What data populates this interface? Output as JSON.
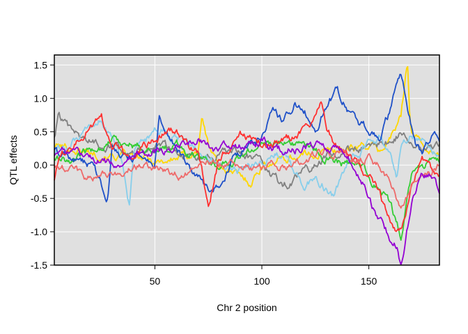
{
  "chart_data": {
    "type": "line",
    "xlabel": "Chr 2 position",
    "ylabel": "QTL effects",
    "xlim": [
      3,
      183
    ],
    "ylim": [
      -1.5,
      1.65
    ],
    "xticks": [
      50,
      100,
      150
    ],
    "yticks": [
      -1.5,
      -1.0,
      -0.5,
      0.0,
      0.5,
      1.0,
      1.5
    ],
    "ytick_labels": [
      "-1.5",
      "-1.0",
      "-0.5",
      "0.0",
      "0.5",
      "1.0",
      "1.5"
    ],
    "background": "#e0e0e0",
    "grid": true,
    "legend": "none",
    "series": [
      {
        "color": "#ffd700",
        "x": [
          3,
          10,
          20,
          30,
          40,
          50,
          60,
          70,
          72,
          75,
          80,
          90,
          95,
          100,
          110,
          120,
          130,
          140,
          150,
          155,
          160,
          165,
          168,
          169,
          170,
          175,
          183
        ],
        "y": [
          0.3,
          0.25,
          0.2,
          0.15,
          0.1,
          0.05,
          0.1,
          0.2,
          0.7,
          0.3,
          0.0,
          -0.2,
          -0.25,
          0.0,
          0.1,
          0.15,
          0.2,
          0.25,
          0.3,
          0.2,
          0.4,
          0.7,
          1.58,
          0.9,
          0.5,
          0.3,
          0.1
        ]
      },
      {
        "color": "#808080",
        "x": [
          3,
          5,
          10,
          20,
          30,
          40,
          50,
          60,
          70,
          80,
          90,
          95,
          100,
          105,
          110,
          115,
          120,
          130,
          140,
          150,
          160,
          165,
          170,
          175,
          183
        ],
        "y": [
          0.4,
          0.75,
          0.5,
          0.35,
          0.3,
          0.25,
          0.3,
          0.2,
          0.1,
          0.15,
          0.2,
          0.1,
          0.0,
          -0.2,
          -0.3,
          -0.25,
          -0.1,
          0.1,
          0.2,
          0.3,
          0.35,
          0.5,
          0.3,
          0.2,
          0.25
        ]
      },
      {
        "color": "#87ceeb",
        "x": [
          3,
          10,
          20,
          25,
          30,
          35,
          38,
          40,
          50,
          60,
          70,
          80,
          90,
          100,
          110,
          115,
          120,
          125,
          130,
          134,
          140,
          150,
          155,
          160,
          163,
          165,
          170,
          175,
          183
        ],
        "y": [
          0.2,
          0.3,
          0.5,
          0.7,
          0.4,
          0.0,
          -0.57,
          0.1,
          0.5,
          0.4,
          0.2,
          0.0,
          -0.1,
          0.1,
          0.2,
          -0.1,
          -0.3,
          -0.2,
          -0.35,
          -0.5,
          0.0,
          0.3,
          0.4,
          0.2,
          -0.2,
          0.3,
          0.5,
          0.4,
          0.2
        ]
      },
      {
        "color": "#32cd32",
        "x": [
          3,
          10,
          20,
          30,
          40,
          50,
          60,
          70,
          80,
          90,
          100,
          110,
          120,
          130,
          140,
          150,
          155,
          160,
          163,
          165,
          168,
          170,
          175,
          183
        ],
        "y": [
          0.1,
          0.05,
          0.2,
          0.4,
          0.3,
          0.2,
          0.3,
          0.1,
          0.0,
          0.1,
          0.3,
          0.4,
          0.3,
          0.1,
          0.0,
          -0.1,
          -0.4,
          -0.6,
          -0.9,
          -1.1,
          -0.5,
          -0.2,
          0.0,
          0.0
        ]
      },
      {
        "color": "#1e50c8",
        "x": [
          3,
          10,
          20,
          25,
          28,
          30,
          40,
          50,
          52,
          55,
          60,
          65,
          70,
          75,
          80,
          85,
          90,
          100,
          105,
          110,
          115,
          120,
          125,
          130,
          135,
          140,
          145,
          150,
          155,
          160,
          163,
          165,
          167,
          170,
          172,
          175,
          180,
          183
        ],
        "y": [
          0.2,
          0.1,
          0.0,
          -0.3,
          -0.47,
          0.2,
          0.1,
          0.0,
          0.75,
          0.5,
          0.3,
          0.0,
          -0.2,
          -0.4,
          -0.3,
          0.0,
          0.2,
          0.4,
          0.8,
          0.7,
          0.9,
          0.8,
          0.6,
          0.9,
          1.1,
          0.85,
          0.6,
          0.5,
          0.4,
          0.8,
          1.2,
          1.3,
          1.0,
          0.6,
          0.3,
          0.2,
          0.45,
          0.4
        ]
      },
      {
        "color": "#ff3030",
        "x": [
          3,
          5,
          10,
          20,
          25,
          28,
          30,
          40,
          50,
          60,
          70,
          72,
          75,
          80,
          90,
          100,
          110,
          120,
          125,
          128,
          130,
          135,
          140,
          145,
          150,
          155,
          158,
          160,
          163,
          165,
          168,
          170,
          175,
          180,
          183
        ],
        "y": [
          -0.2,
          0.1,
          0.3,
          0.6,
          0.7,
          0.4,
          0.3,
          0.1,
          0.4,
          0.5,
          0.2,
          -0.1,
          -0.58,
          0.1,
          0.5,
          0.3,
          0.4,
          0.5,
          0.7,
          0.9,
          0.6,
          0.3,
          0.2,
          0.0,
          -0.2,
          -0.4,
          -0.7,
          -0.8,
          -1.05,
          -1.0,
          -0.6,
          -0.2,
          0.1,
          -0.1,
          -0.2
        ]
      },
      {
        "color": "#ee6a6a",
        "x": [
          3,
          10,
          20,
          30,
          40,
          50,
          60,
          65,
          70,
          80,
          90,
          100,
          110,
          120,
          130,
          140,
          150,
          155,
          160,
          165,
          170,
          175,
          183
        ],
        "y": [
          0.0,
          -0.1,
          -0.2,
          -0.15,
          0.0,
          -0.05,
          -0.15,
          -0.1,
          0.0,
          0.05,
          0.0,
          -0.05,
          0.0,
          0.1,
          0.2,
          0.15,
          0.1,
          0.0,
          -0.2,
          -0.6,
          -0.4,
          -0.2,
          -0.05
        ]
      },
      {
        "color": "#9400d3",
        "x": [
          3,
          10,
          20,
          30,
          40,
          50,
          60,
          70,
          80,
          90,
          100,
          110,
          120,
          130,
          140,
          150,
          152,
          155,
          158,
          160,
          163,
          165,
          168,
          170,
          172,
          175,
          180,
          183
        ],
        "y": [
          0.1,
          0.2,
          0.1,
          0.0,
          0.1,
          0.2,
          0.3,
          0.4,
          0.2,
          0.3,
          0.35,
          0.2,
          0.3,
          0.25,
          0.2,
          -0.4,
          -0.6,
          -0.8,
          -1.0,
          -1.1,
          -1.2,
          -1.45,
          -0.9,
          -0.5,
          -0.3,
          -0.1,
          -0.2,
          -0.4
        ]
      }
    ]
  }
}
